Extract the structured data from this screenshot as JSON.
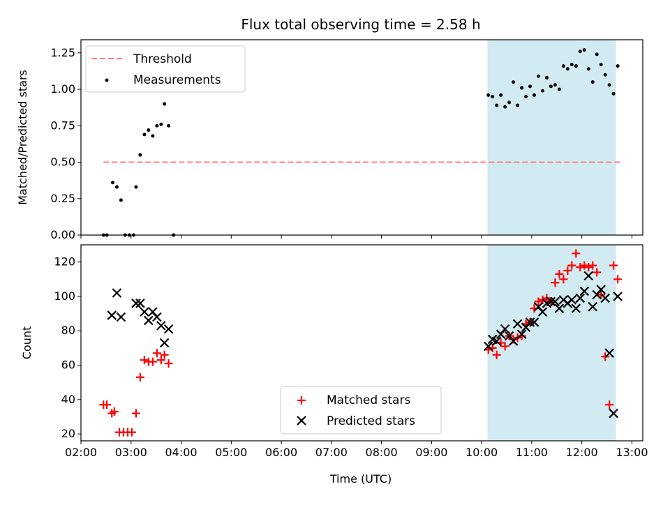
{
  "figure": {
    "title": "Flux total observing time = 2.58 h"
  },
  "chart_data": [
    {
      "type": "scatter",
      "ylabel": "Matched/Predicted stars",
      "xlabel": "",
      "xlim": [
        "02:00",
        "13:13"
      ],
      "ylim": [
        0,
        1.34
      ],
      "yticks": [
        "0.00",
        "0.25",
        "0.50",
        "0.75",
        "1.00",
        "1.25"
      ],
      "xtick_labels_visible": false,
      "shaded_region": {
        "start": "10:07",
        "end": "12:41",
        "color": "#add8e6"
      },
      "threshold": {
        "name": "Threshold",
        "value": 0.5,
        "start": "02:27",
        "end": "12:46",
        "color": "#ff7f7f",
        "style": "dashed"
      },
      "legend": {
        "position": "upper-left",
        "entries": [
          "Threshold",
          "Measurements"
        ]
      },
      "series": [
        {
          "name": "Measurements",
          "color": "#000000",
          "marker": "dot",
          "x": [
            "02:27",
            "02:31",
            "02:38",
            "02:43",
            "02:48",
            "02:53",
            "02:58",
            "03:03",
            "03:06",
            "03:11",
            "03:16",
            "03:21",
            "03:26",
            "03:31",
            "03:36",
            "03:40",
            "03:45",
            "03:51",
            "10:08",
            "10:13",
            "10:18",
            "10:23",
            "10:28",
            "10:33",
            "10:38",
            "10:43",
            "10:48",
            "10:53",
            "10:58",
            "11:03",
            "11:08",
            "11:13",
            "11:18",
            "11:23",
            "11:28",
            "11:33",
            "11:38",
            "11:43",
            "11:48",
            "11:53",
            "11:58",
            "12:03",
            "12:08",
            "12:13",
            "12:18",
            "12:23",
            "12:28",
            "12:33",
            "12:38",
            "12:43"
          ],
          "y": [
            0,
            0,
            0.36,
            0.33,
            0.24,
            0,
            0,
            0,
            0.33,
            0.55,
            0.69,
            0.72,
            0.68,
            0.75,
            0.76,
            0.9,
            0.75,
            0,
            0.96,
            0.95,
            0.89,
            0.96,
            0.88,
            0.91,
            1.05,
            0.89,
            1.01,
            0.95,
            1.02,
            0.96,
            1.09,
            0.99,
            1.08,
            1.02,
            1.03,
            1.0,
            1.16,
            1.14,
            1.17,
            1.16,
            1.26,
            1.27,
            1.14,
            1.05,
            1.24,
            1.17,
            1.1,
            1.03,
            0.97,
            1.16
          ]
        }
      ]
    },
    {
      "type": "scatter",
      "ylabel": "Count",
      "xlabel": "Time (UTC)",
      "xlim": [
        "02:00",
        "13:13"
      ],
      "ylim": [
        16,
        130
      ],
      "yticks": [
        "20",
        "40",
        "60",
        "80",
        "100",
        "120"
      ],
      "xticks": [
        "02:00",
        "03:00",
        "04:00",
        "05:00",
        "06:00",
        "07:00",
        "08:00",
        "09:00",
        "10:00",
        "11:00",
        "12:00",
        "13:00"
      ],
      "shaded_region": {
        "start": "10:07",
        "end": "12:41",
        "color": "#add8e6"
      },
      "legend": {
        "position": "lower-center",
        "entries": [
          "Matched stars",
          "Predicted stars"
        ]
      },
      "series": [
        {
          "name": "Matched stars",
          "color": "#ff0000",
          "marker": "plus",
          "x": [
            "02:27",
            "02:31",
            "02:37",
            "02:40",
            "02:46",
            "02:51",
            "02:56",
            "03:01",
            "03:06",
            "03:11",
            "03:16",
            "03:21",
            "03:26",
            "03:31",
            "03:36",
            "03:40",
            "03:45",
            "10:08",
            "10:13",
            "10:18",
            "10:23",
            "10:28",
            "10:33",
            "10:38",
            "10:43",
            "10:48",
            "10:53",
            "10:58",
            "11:03",
            "11:08",
            "11:13",
            "11:18",
            "11:23",
            "11:28",
            "11:33",
            "11:38",
            "11:43",
            "11:48",
            "11:53",
            "11:58",
            "12:03",
            "12:08",
            "12:13",
            "12:18",
            "12:23",
            "12:28",
            "12:33",
            "12:38",
            "12:43"
          ],
          "y": [
            37,
            37,
            32,
            33,
            21,
            21,
            21,
            21,
            32,
            53,
            63,
            62,
            62,
            67,
            63,
            66,
            61,
            69,
            70,
            66,
            73,
            71,
            77,
            75,
            76,
            77,
            84,
            85,
            93,
            97,
            98,
            99,
            97,
            108,
            113,
            110,
            115,
            118,
            125,
            117,
            118,
            117,
            118,
            114,
            101,
            65,
            37,
            118,
            110
          ]
        },
        {
          "name": "Predicted stars",
          "color": "#000000",
          "marker": "x",
          "x": [
            "02:37",
            "02:43",
            "02:48",
            "03:06",
            "03:11",
            "03:16",
            "03:21",
            "03:26",
            "03:31",
            "03:36",
            "03:40",
            "03:45",
            "10:08",
            "10:13",
            "10:18",
            "10:23",
            "10:28",
            "10:33",
            "10:38",
            "10:43",
            "10:48",
            "10:53",
            "10:58",
            "11:03",
            "11:08",
            "11:13",
            "11:18",
            "11:23",
            "11:28",
            "11:33",
            "11:38",
            "11:43",
            "11:48",
            "11:53",
            "11:58",
            "12:03",
            "12:08",
            "12:13",
            "12:18",
            "12:23",
            "12:28",
            "12:33",
            "12:38",
            "12:43"
          ],
          "y": [
            89,
            102,
            88,
            96,
            96,
            91,
            86,
            91,
            88,
            83,
            73,
            81,
            71,
            75,
            74,
            78,
            81,
            77,
            74,
            84,
            78,
            82,
            85,
            85,
            94,
            91,
            96,
            97,
            97,
            93,
            98,
            96,
            98,
            93,
            99,
            103,
            112,
            94,
            101,
            104,
            99,
            67,
            32,
            100
          ]
        }
      ]
    }
  ]
}
